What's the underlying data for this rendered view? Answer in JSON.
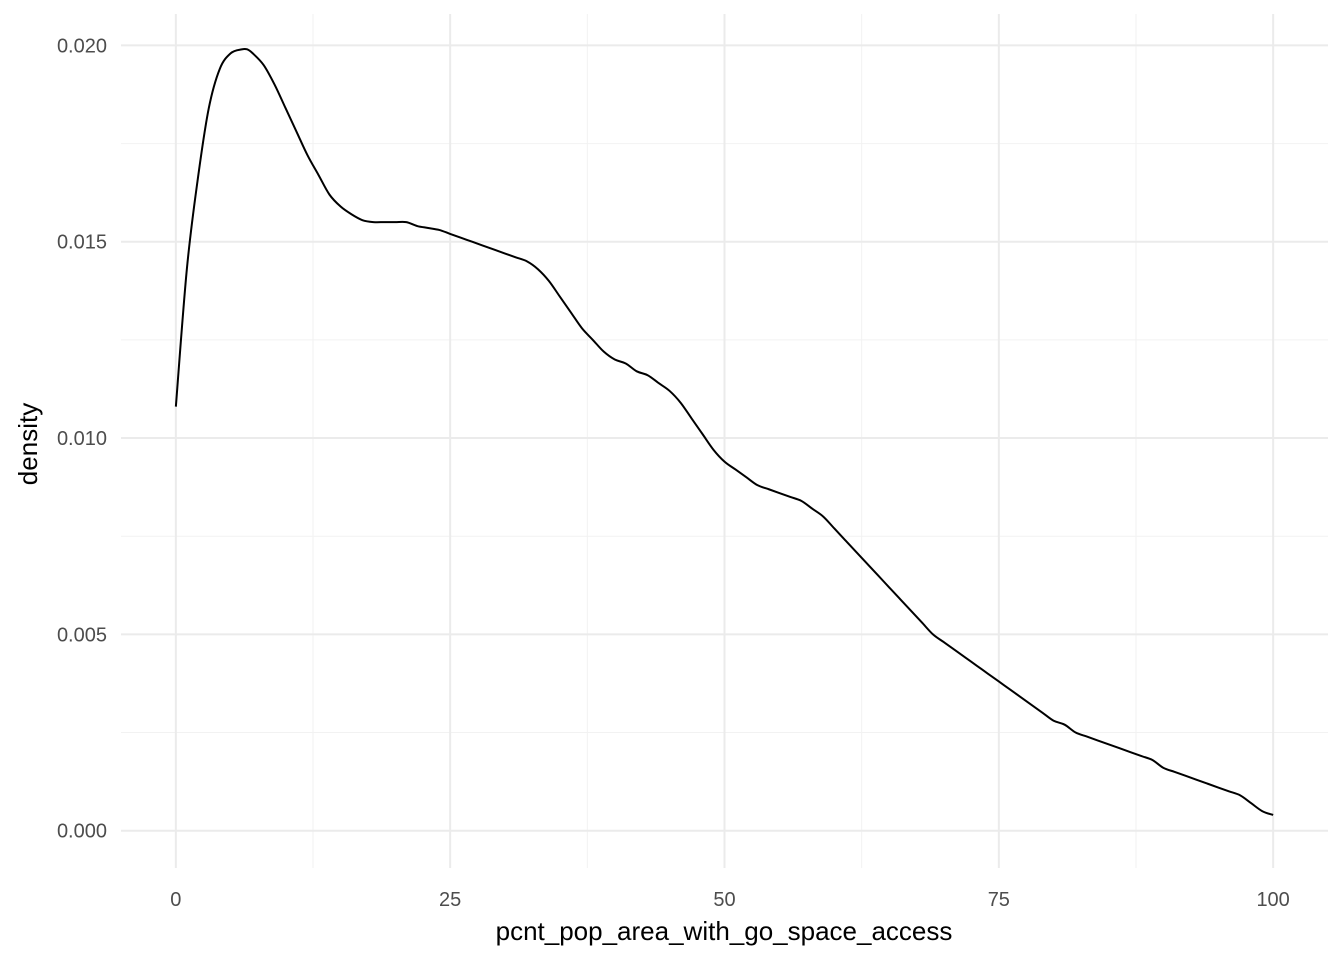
{
  "chart_data": {
    "type": "line",
    "xlabel": "pcnt_pop_area_with_go_space_access",
    "ylabel": "density",
    "xlim": [
      -5,
      105
    ],
    "ylim": [
      -0.00095,
      0.0208
    ],
    "x_ticks": [
      {
        "value": 0,
        "label": "0"
      },
      {
        "value": 25,
        "label": "25"
      },
      {
        "value": 50,
        "label": "50"
      },
      {
        "value": 75,
        "label": "75"
      },
      {
        "value": 100,
        "label": "100"
      }
    ],
    "x_minor_ticks": [
      12.5,
      37.5,
      62.5,
      87.5
    ],
    "y_ticks": [
      {
        "value": 0.0,
        "label": "0.000"
      },
      {
        "value": 0.005,
        "label": "0.005"
      },
      {
        "value": 0.01,
        "label": "0.010"
      },
      {
        "value": 0.015,
        "label": "0.015"
      },
      {
        "value": 0.02,
        "label": "0.020"
      }
    ],
    "y_minor_ticks": [
      0.0025,
      0.0075,
      0.0125,
      0.0175
    ],
    "grid": true,
    "legend": "none",
    "series": [
      {
        "color": "#000000",
        "x": [
          0,
          1,
          2,
          3,
          4,
          5,
          6,
          6.5,
          7,
          8,
          9,
          10,
          11,
          12,
          13,
          14,
          15,
          16,
          17,
          18,
          19,
          20,
          21,
          22,
          23,
          24,
          25,
          26,
          27,
          28,
          29,
          30,
          31,
          32,
          33,
          34,
          35,
          36,
          37,
          38,
          39,
          40,
          41,
          42,
          43,
          44,
          45,
          46,
          47,
          48,
          49,
          50,
          51,
          52,
          53,
          54,
          55,
          56,
          57,
          58,
          59,
          60,
          61,
          62,
          63,
          64,
          65,
          66,
          67,
          68,
          69,
          70,
          71,
          72,
          73,
          74,
          75,
          76,
          77,
          78,
          79,
          80,
          81,
          82,
          83,
          84,
          85,
          86,
          87,
          88,
          89,
          90,
          91,
          92,
          93,
          94,
          95,
          96,
          97,
          98,
          99,
          100
        ],
        "y": [
          0.0108,
          0.0143,
          0.0166,
          0.0184,
          0.0194,
          0.0198,
          0.0199,
          0.0199,
          0.0198,
          0.0195,
          0.019,
          0.0184,
          0.0178,
          0.0172,
          0.0167,
          0.0162,
          0.0159,
          0.0157,
          0.01555,
          0.0155,
          0.0155,
          0.0155,
          0.0155,
          0.0154,
          0.01535,
          0.0153,
          0.0152,
          0.0151,
          0.015,
          0.0149,
          0.0148,
          0.0147,
          0.0146,
          0.0145,
          0.0143,
          0.014,
          0.0136,
          0.0132,
          0.0128,
          0.0125,
          0.0122,
          0.012,
          0.0119,
          0.0117,
          0.0116,
          0.0114,
          0.0112,
          0.0109,
          0.0105,
          0.0101,
          0.0097,
          0.0094,
          0.0092,
          0.009,
          0.0088,
          0.0087,
          0.0086,
          0.0085,
          0.0084,
          0.0082,
          0.008,
          0.0077,
          0.0074,
          0.0071,
          0.0068,
          0.0065,
          0.0062,
          0.0059,
          0.0056,
          0.0053,
          0.005,
          0.0048,
          0.0046,
          0.0044,
          0.0042,
          0.004,
          0.0038,
          0.0036,
          0.0034,
          0.0032,
          0.003,
          0.0028,
          0.0027,
          0.0025,
          0.0024,
          0.0023,
          0.0022,
          0.0021,
          0.002,
          0.0019,
          0.0018,
          0.0016,
          0.0015,
          0.0014,
          0.0013,
          0.0012,
          0.0011,
          0.001,
          0.0009,
          0.0007,
          0.0005,
          0.0004
        ]
      }
    ]
  }
}
